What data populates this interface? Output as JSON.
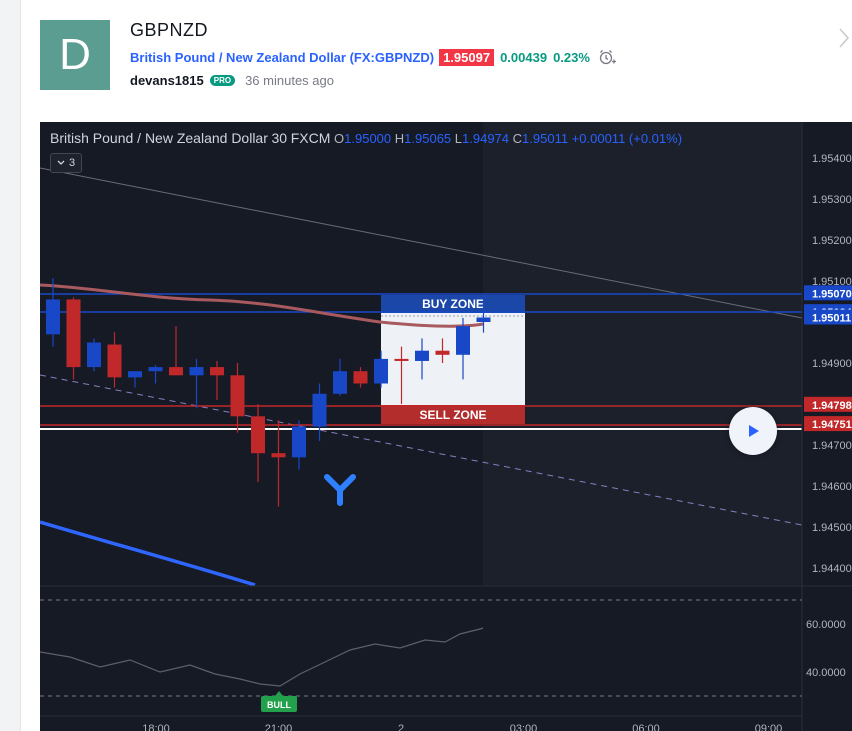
{
  "idea": {
    "avatar_letter": "D",
    "symbol": "GBPNZD",
    "pair_name": "British Pound / New Zealand Dollar (FX:GBPNZD)",
    "price": "1.95097",
    "change": "0.00439",
    "change_pct": "0.23%",
    "author": "devans1815",
    "author_badge": "PRO",
    "time_ago": "36 minutes ago"
  },
  "chart": {
    "legend": {
      "name": "British Pound / New Zealand Dollar",
      "interval": "30",
      "source": "FXCM",
      "open_label": "O",
      "open": "1.95000",
      "high_label": "H",
      "high": "1.95065",
      "low_label": "L",
      "low": "1.94974",
      "close_label": "C",
      "close": "1.95011",
      "change": "+0.00011 (+0.01%)"
    },
    "collapse_label": "3",
    "buy_zone_label": "BUY ZONE",
    "sell_zone_label": "SELL ZONE",
    "bull_label": "BULL",
    "colors": {
      "up": "#1848c8",
      "down": "#c0282a",
      "background": "#161a25",
      "buy_zone": "#1b48a8",
      "sell_zone": "#b42d2d"
    }
  },
  "chart_data": {
    "type": "candlestick",
    "price_axis": {
      "ticks": [
        "1.95400",
        "1.95300",
        "1.95200",
        "1.95100",
        "1.94900",
        "1.94800",
        "1.94700",
        "1.94600",
        "1.94500",
        "1.94400"
      ],
      "labels": [
        {
          "text": "1.95070",
          "color": "#1848c8"
        },
        {
          "text": "1.95024",
          "color": "#1848c8"
        },
        {
          "text": "1.95011",
          "color": "#1848c8"
        },
        {
          "text": "1.94798",
          "color": "#c0282a"
        },
        {
          "text": "1.94751",
          "color": "#c0282a"
        }
      ]
    },
    "time_axis": [
      "18:00",
      "21:00",
      "2",
      "03:00",
      "06:00",
      "09:00"
    ],
    "oscillator_axis": [
      "60.0000",
      "40.0000"
    ],
    "candles": [
      {
        "o": 1.9497,
        "h": 1.95107,
        "l": 1.9494,
        "c": 1.95055
      },
      {
        "o": 1.95055,
        "h": 1.9506,
        "l": 1.9486,
        "c": 1.9489
      },
      {
        "o": 1.9489,
        "h": 1.9496,
        "l": 1.9488,
        "c": 1.9495
      },
      {
        "o": 1.94945,
        "h": 1.94975,
        "l": 1.9484,
        "c": 1.94865
      },
      {
        "o": 1.94865,
        "h": 1.9488,
        "l": 1.9484,
        "c": 1.9488
      },
      {
        "o": 1.9488,
        "h": 1.94895,
        "l": 1.9485,
        "c": 1.9489
      },
      {
        "o": 1.9489,
        "h": 1.9499,
        "l": 1.9487,
        "c": 1.9487
      },
      {
        "o": 1.9487,
        "h": 1.9491,
        "l": 1.9479,
        "c": 1.9489
      },
      {
        "o": 1.9489,
        "h": 1.94905,
        "l": 1.9481,
        "c": 1.9487
      },
      {
        "o": 1.9487,
        "h": 1.949,
        "l": 1.9473,
        "c": 1.9477
      },
      {
        "o": 1.9477,
        "h": 1.948,
        "l": 1.9461,
        "c": 1.9468
      },
      {
        "o": 1.9468,
        "h": 1.9476,
        "l": 1.9455,
        "c": 1.9467
      },
      {
        "o": 1.9467,
        "h": 1.9476,
        "l": 1.9464,
        "c": 1.94745
      },
      {
        "o": 1.94745,
        "h": 1.9485,
        "l": 1.9471,
        "c": 1.94825
      },
      {
        "o": 1.94825,
        "h": 1.9491,
        "l": 1.9482,
        "c": 1.9488
      },
      {
        "o": 1.9488,
        "h": 1.9489,
        "l": 1.9484,
        "c": 1.9485
      },
      {
        "o": 1.9485,
        "h": 1.9493,
        "l": 1.9484,
        "c": 1.9491
      },
      {
        "o": 1.9491,
        "h": 1.9494,
        "l": 1.948,
        "c": 1.94905
      },
      {
        "o": 1.94905,
        "h": 1.9496,
        "l": 1.9486,
        "c": 1.9493
      },
      {
        "o": 1.9493,
        "h": 1.9496,
        "l": 1.949,
        "c": 1.9492
      },
      {
        "o": 1.9492,
        "h": 1.9501,
        "l": 1.9486,
        "c": 1.9499
      },
      {
        "o": 1.95,
        "h": 1.95065,
        "l": 1.94974,
        "c": 1.95011
      }
    ]
  }
}
